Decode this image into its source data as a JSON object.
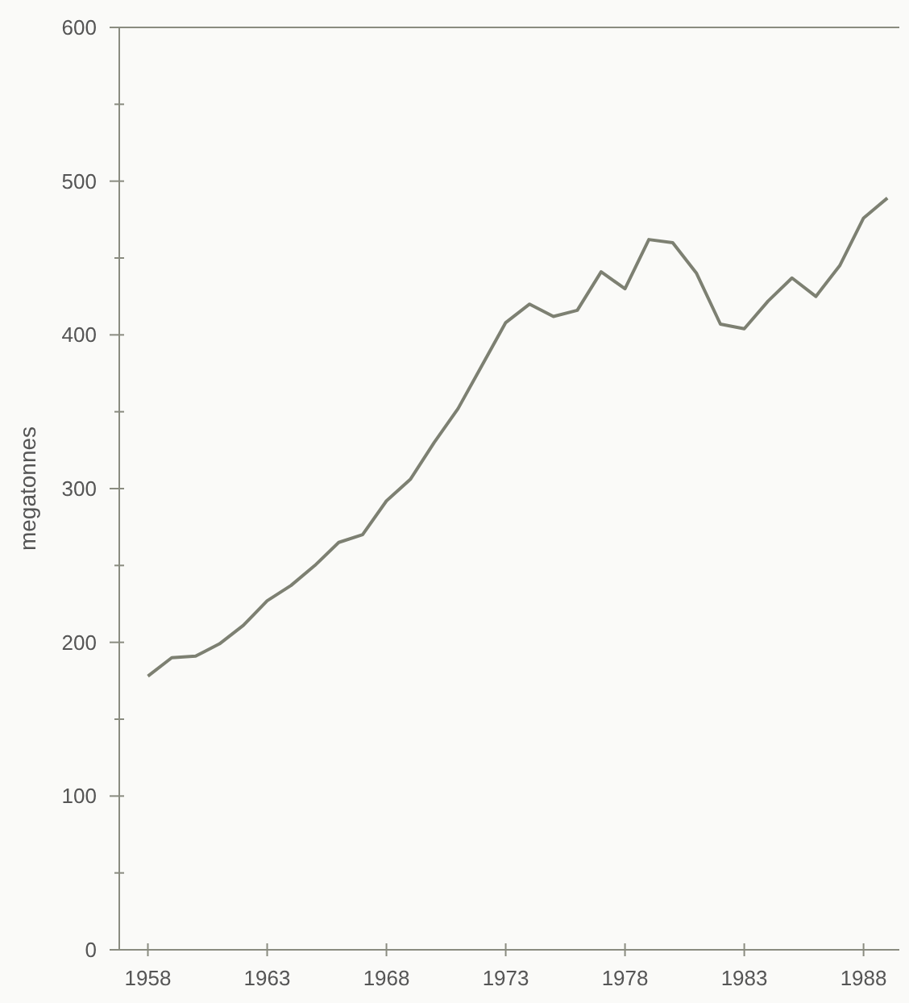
{
  "chart_data": {
    "type": "line",
    "ylabel": "megatonnes",
    "x": [
      1958,
      1959,
      1960,
      1961,
      1962,
      1963,
      1964,
      1965,
      1966,
      1967,
      1968,
      1969,
      1970,
      1971,
      1972,
      1973,
      1974,
      1975,
      1976,
      1977,
      1978,
      1979,
      1980,
      1981,
      1982,
      1983,
      1984,
      1985,
      1986,
      1987,
      1988,
      1989
    ],
    "series": [
      {
        "color": "#7d8072",
        "values": [
          178,
          190,
          191,
          199,
          211,
          227,
          237,
          250,
          265,
          270,
          292,
          306,
          330,
          352,
          380,
          408,
          420,
          412,
          416,
          441,
          430,
          462,
          460,
          440,
          407,
          404,
          422,
          437,
          425,
          445,
          476,
          489
        ]
      }
    ],
    "xlim": [
      1956.8,
      1989.5
    ],
    "xticks": [
      1958,
      1963,
      1968,
      1973,
      1978,
      1983,
      1988
    ],
    "ylim": [
      0,
      600
    ],
    "yticks": [
      0,
      {
        "value": 50,
        "label": null
      },
      100,
      {
        "value": 150,
        "label": null
      },
      200,
      {
        "value": 250,
        "label": null
      },
      300,
      {
        "value": 350,
        "label": null
      },
      400,
      {
        "value": 450,
        "label": null
      },
      500,
      {
        "value": 550,
        "label": null
      },
      600
    ],
    "grid": false,
    "marker": "none",
    "line_style": "solid"
  }
}
